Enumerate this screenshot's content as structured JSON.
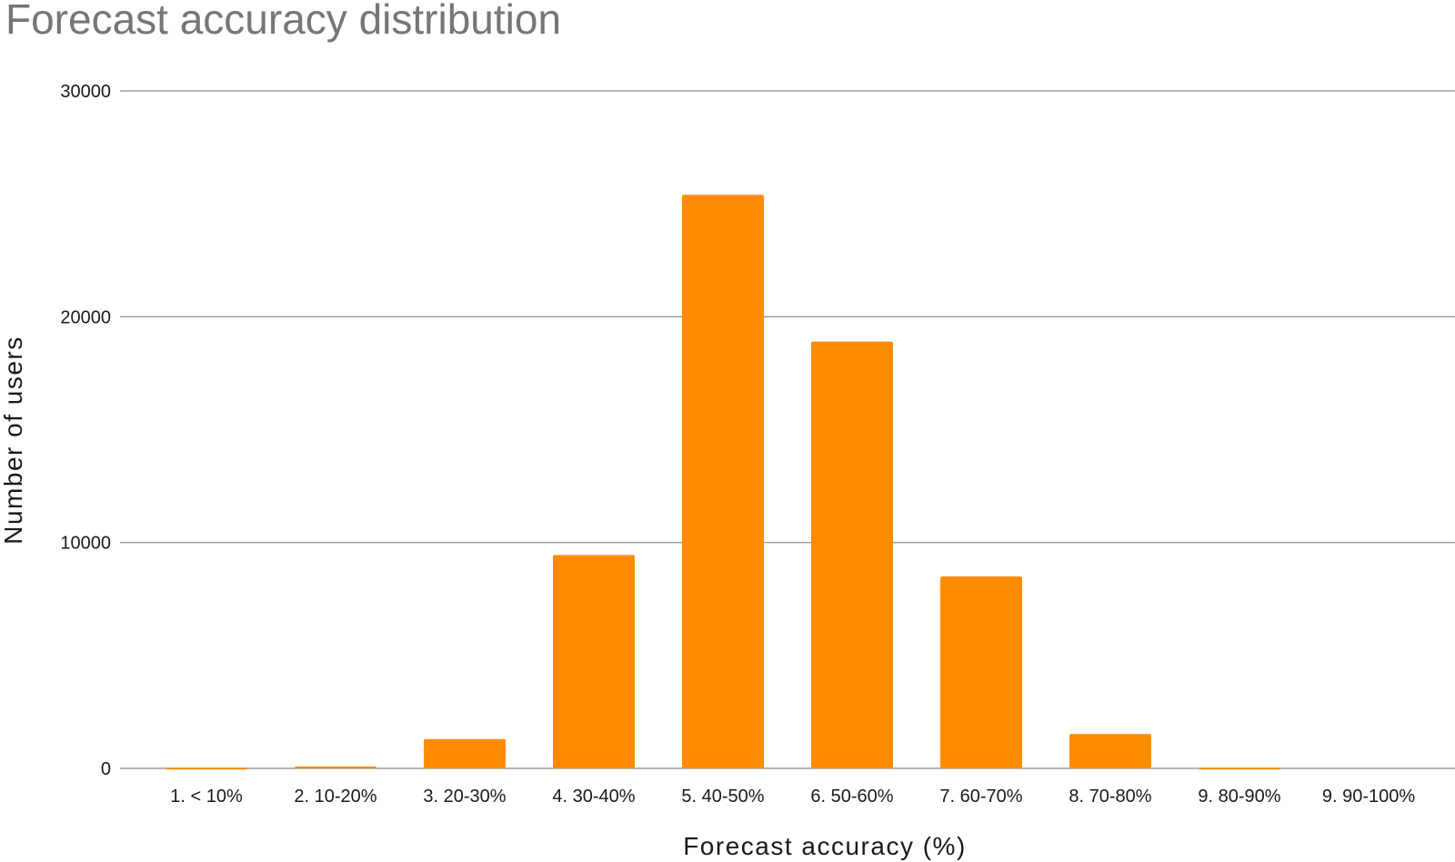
{
  "chart_data": {
    "type": "bar",
    "title": "Forecast accuracy distribution",
    "xlabel": "Forecast accuracy (%)",
    "ylabel": "Number of users",
    "categories": [
      "1. < 10%",
      "2. 10-20%",
      "3. 20-30%",
      "4. 30-40%",
      "5. 40-50%",
      "6. 50-60%",
      "7. 60-70%",
      "8. 70-80%",
      "9. 80-90%",
      "9. 90-100%"
    ],
    "values": [
      30,
      80,
      1300,
      9450,
      25400,
      18900,
      8500,
      1520,
      30,
      0
    ],
    "ylim": [
      0,
      30000
    ],
    "yticks": [
      0,
      10000,
      20000,
      30000
    ],
    "ytick_labels": [
      "0",
      "10000",
      "20000",
      "30000"
    ],
    "grid": true,
    "legend": "none",
    "colors": {
      "bar": "#ff8c00",
      "grid": "#9e9e9e",
      "title": "#767676",
      "text": "#1a1a1a"
    }
  }
}
